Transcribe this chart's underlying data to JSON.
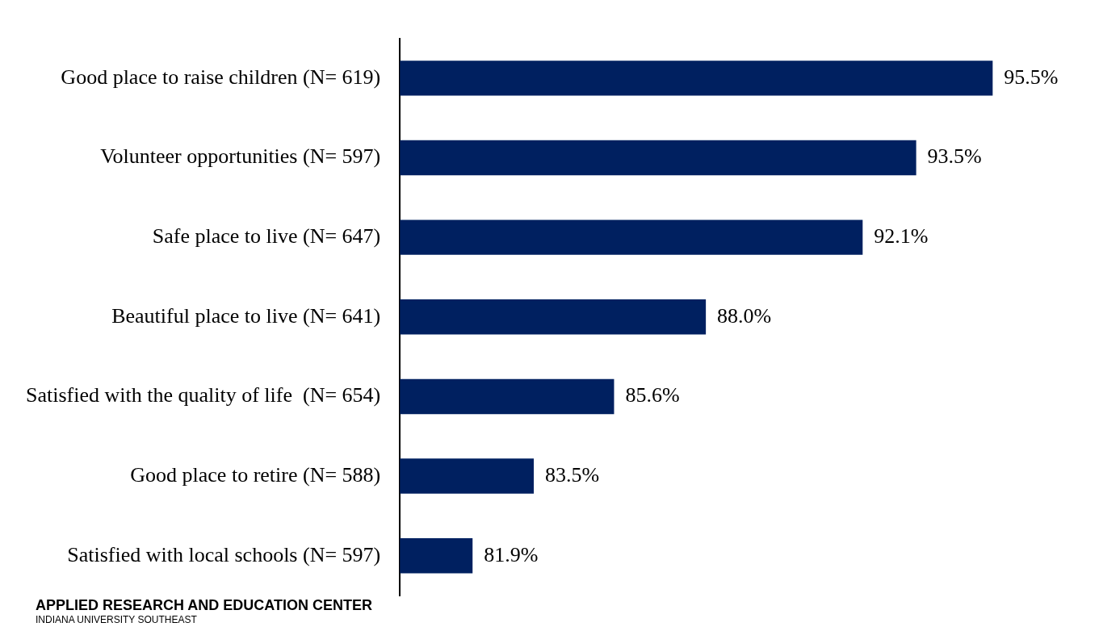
{
  "chart_data": {
    "type": "bar",
    "orientation": "horizontal",
    "categories": [
      "Good place to raise children (N= 619)",
      "Volunteer opportunities (N= 597)",
      "Safe place to live (N= 647)",
      "Beautiful place to live (N= 641)",
      "Satisfied with the quality of life  (N= 654)",
      "Good place to retire (N= 588)",
      "Satisfied with local schools (N= 597)"
    ],
    "values": [
      95.5,
      93.5,
      92.1,
      88.0,
      85.6,
      83.5,
      81.9
    ],
    "value_labels": [
      "95.5%",
      "93.5%",
      "92.1%",
      "88.0%",
      "85.6%",
      "83.5%",
      "81.9%"
    ],
    "color": "#002060",
    "tick_labels": "y",
    "grid": false,
    "legend": false,
    "annotations": [
      "APPLIED RESEARCH AND EDUCATION CENTER",
      "INDIANA UNIVERSITY SOUTHEAST"
    ]
  }
}
